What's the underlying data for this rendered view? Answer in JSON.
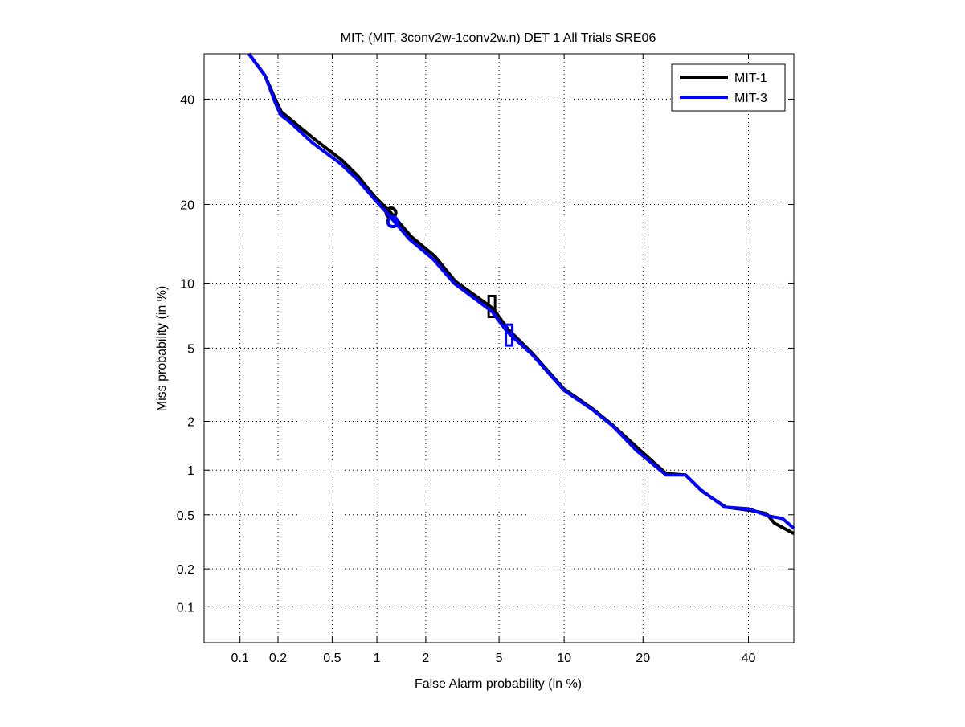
{
  "chart_data": {
    "type": "line",
    "scale": "normal-deviate (DET)",
    "title": "MIT: (MIT, 3conv2w-1conv2w.n) DET 1 All Trials SRE06",
    "xlabel": "False Alarm probability (in %)",
    "ylabel": "Miss probability (in %)",
    "xlim": [
      0.05,
      50
    ],
    "ylim": [
      0.05,
      50
    ],
    "grid": true,
    "legend_position": "top-right",
    "x_ticks": [
      0.1,
      0.2,
      0.5,
      1,
      2,
      5,
      10,
      20,
      40
    ],
    "x_tick_labels": [
      "0.1",
      "0.2",
      "0.5",
      "1",
      "2",
      "5",
      "10",
      "20",
      "40"
    ],
    "y_ticks": [
      0.1,
      0.2,
      0.5,
      1,
      2,
      5,
      10,
      20,
      40
    ],
    "y_tick_labels": [
      "0.1",
      "0.2",
      "0.5",
      "1",
      "2",
      "5",
      "10",
      "20",
      "40"
    ],
    "series": [
      {
        "name": "MIT-1",
        "color": "#000000",
        "x": [
          0.118,
          0.159,
          0.192,
          0.212,
          0.251,
          0.369,
          0.585,
          0.753,
          0.962,
          1.22,
          1.63,
          2.26,
          2.94,
          4.67,
          5.51,
          7.2,
          10.0,
          13.1,
          15.6,
          19.1,
          23.8,
          27.3,
          30.4,
          35.2,
          40.4,
          43.9,
          45.7,
          50
        ],
        "y": [
          50,
          45.1,
          39.8,
          37.3,
          35.6,
          31.8,
          27.6,
          24.7,
          21.3,
          18.8,
          15.4,
          12.9,
          10.2,
          7.72,
          6.22,
          4.73,
          3.05,
          2.36,
          1.9,
          1.39,
          0.95,
          0.93,
          0.726,
          0.565,
          0.537,
          0.51,
          0.436,
          0.367
        ],
        "markers": [
          {
            "shape": "circle",
            "x": 1.23,
            "y": 18.7
          },
          {
            "shape": "square",
            "x": 4.6,
            "y": 7.9
          }
        ]
      },
      {
        "name": "MIT-3",
        "color": "#0000ff",
        "x": [
          0.118,
          0.159,
          0.19,
          0.21,
          0.25,
          0.36,
          0.57,
          0.74,
          0.95,
          1.2,
          1.6,
          2.2,
          2.9,
          4.6,
          5.5,
          7.2,
          10.0,
          13.1,
          15.6,
          19.0,
          23.8,
          27.3,
          30.2,
          35.0,
          40.0,
          44.5,
          47.5,
          50
        ],
        "y": [
          50,
          45.1,
          39.3,
          36.6,
          35.0,
          31.0,
          27.0,
          24.2,
          21.0,
          18.3,
          15.0,
          12.6,
          10.0,
          7.5,
          6.0,
          4.65,
          3.0,
          2.33,
          1.88,
          1.33,
          0.93,
          0.93,
          0.74,
          0.565,
          0.55,
          0.49,
          0.47,
          0.4
        ],
        "markers": [
          {
            "shape": "circle",
            "x": 1.26,
            "y": 17.4
          },
          {
            "shape": "square",
            "x": 5.6,
            "y": 5.8
          }
        ]
      }
    ]
  }
}
